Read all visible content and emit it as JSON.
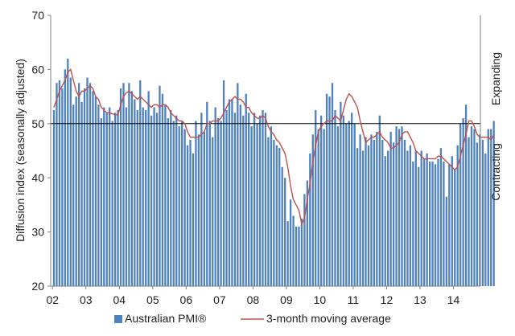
{
  "chart_data": {
    "type": "bar",
    "ylabel": "Diffusion index (seasonally adjusted)",
    "xlabel": "",
    "ylim": [
      20,
      70
    ],
    "y_ticks": [
      "20",
      "30",
      "40",
      "50",
      "60",
      "70"
    ],
    "x_tick_labels": [
      "02",
      "03",
      "04",
      "05",
      "06",
      "07",
      "08",
      "09",
      "10",
      "11",
      "12",
      "13",
      "14"
    ],
    "reference_line": 50,
    "annotations": {
      "upper": "Expanding",
      "lower": "Contracting"
    },
    "legend": {
      "bar_series": "Australian PMI®",
      "line_series": "3-month moving average"
    },
    "colors": {
      "bars": "#4f81bd",
      "line": "#c0504d",
      "ref_line": "#000000",
      "axis": "#7f7f7f"
    },
    "series": [
      {
        "name": "Australian PMI®",
        "kind": "bar",
        "values": [
          52.5,
          57.5,
          58.0,
          56.5,
          60.0,
          62.0,
          58.5,
          53.5,
          55.0,
          57.5,
          54.0,
          56.5,
          58.5,
          57.5,
          56.0,
          55.0,
          53.5,
          51.0,
          53.0,
          52.0,
          53.0,
          50.5,
          52.0,
          52.5,
          56.5,
          57.5,
          53.0,
          57.5,
          56.0,
          54.5,
          52.5,
          58.0,
          53.0,
          52.5,
          56.0,
          51.5,
          53.0,
          52.0,
          57.0,
          55.5,
          53.5,
          51.0,
          52.5,
          50.5,
          51.5,
          49.5,
          50.5,
          49.0,
          46.0,
          47.0,
          44.5,
          50.5,
          48.0,
          52.0,
          48.5,
          54.0,
          50.5,
          47.5,
          53.0,
          51.0,
          50.5,
          58.0,
          52.5,
          54.5,
          54.5,
          52.0,
          57.5,
          53.5,
          51.5,
          55.5,
          52.0,
          49.5,
          52.0,
          50.0,
          51.5,
          52.5,
          52.0,
          47.5,
          49.5,
          47.0,
          46.0,
          45.5,
          42.0,
          40.0,
          32.0,
          36.0,
          33.0,
          31.0,
          31.0,
          32.5,
          37.0,
          39.5,
          44.5,
          48.0,
          52.5,
          49.0,
          51.5,
          49.0,
          55.5,
          55.0,
          57.5,
          52.5,
          49.5,
          54.0,
          51.5,
          50.0,
          50.5,
          52.0,
          50.0,
          45.5,
          48.0,
          45.0,
          47.5,
          46.0,
          48.0,
          47.0,
          48.5,
          51.5,
          47.0,
          44.0,
          45.0,
          48.5,
          46.5,
          49.5,
          49.0,
          49.5,
          47.0,
          45.0,
          46.0,
          43.0,
          45.0,
          42.0,
          45.0,
          43.5,
          44.5,
          43.0,
          43.0,
          42.5,
          43.5,
          45.5,
          43.0,
          36.5,
          42.5,
          44.0,
          41.5,
          46.0,
          50.0,
          51.0,
          53.5,
          47.5,
          49.5,
          49.0,
          46.5,
          48.0,
          47.0,
          44.5,
          49.0,
          49.0,
          50.5
        ]
      },
      {
        "name": "3-month moving average",
        "kind": "line",
        "values": [
          53.0,
          54.5,
          56.0,
          57.0,
          58.0,
          59.5,
          60.0,
          58.0,
          56.0,
          55.0,
          56.0,
          56.0,
          56.5,
          57.0,
          56.5,
          55.0,
          54.5,
          53.0,
          52.5,
          52.0,
          52.0,
          51.8,
          51.7,
          51.6,
          53.5,
          55.0,
          55.7,
          56.0,
          55.5,
          55.0,
          54.5,
          55.0,
          54.5,
          54.0,
          53.5,
          53.0,
          53.5,
          53.5,
          53.0,
          53.5,
          53.5,
          53.0,
          52.0,
          51.5,
          51.0,
          50.5,
          50.5,
          50.0,
          48.5,
          47.5,
          47.5,
          47.5,
          47.5,
          48.0,
          48.5,
          50.0,
          50.0,
          50.5,
          50.5,
          50.5,
          51.0,
          52.0,
          53.0,
          54.0,
          54.5,
          55.0,
          54.5,
          54.5,
          54.0,
          53.0,
          53.0,
          52.0,
          51.5,
          51.0,
          51.0,
          51.5,
          51.0,
          49.5,
          48.5,
          48.0,
          47.0,
          46.5,
          45.5,
          44.5,
          42.0,
          38.5,
          36.0,
          35.0,
          34.0,
          31.5,
          32.5,
          36.0,
          39.0,
          43.0,
          46.0,
          48.5,
          49.5,
          50.0,
          50.5,
          50.5,
          50.5,
          51.5,
          51.0,
          50.5,
          52.5,
          54.5,
          55.5,
          55.0,
          54.0,
          53.0,
          50.5,
          48.5,
          46.5,
          47.0,
          47.5,
          47.5,
          48.0,
          48.5,
          47.5,
          47.0,
          46.5,
          45.5,
          45.5,
          46.0,
          46.5,
          48.0,
          48.5,
          48.5,
          47.5,
          46.5,
          45.0,
          44.5,
          44.0,
          43.5,
          43.5,
          43.5,
          43.5,
          43.5,
          44.0,
          44.0,
          43.5,
          43.0,
          42.5,
          42.0,
          41.5,
          42.0,
          44.0,
          46.0,
          48.0,
          50.5,
          50.5,
          49.5,
          48.0,
          47.5,
          47.5,
          47.5,
          47.5,
          47.0,
          48.0
        ]
      }
    ]
  }
}
